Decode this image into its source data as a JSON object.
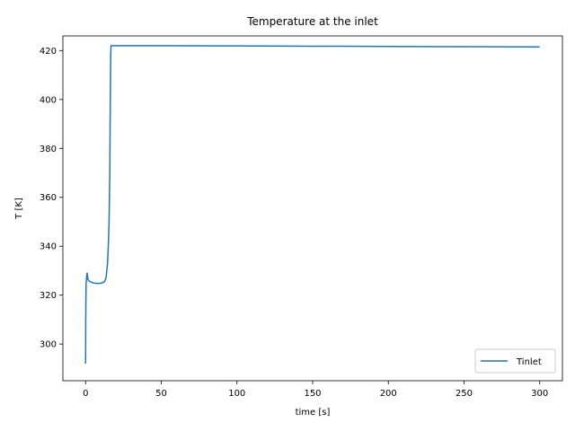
{
  "chart_data": {
    "type": "line",
    "title": "Temperature at the inlet",
    "xlabel": "time [s]",
    "ylabel": "T [K]",
    "xlim": [
      -15,
      315
    ],
    "ylim": [
      285,
      426
    ],
    "xticks": [
      0,
      50,
      100,
      150,
      200,
      250,
      300
    ],
    "yticks": [
      300,
      320,
      340,
      360,
      380,
      400,
      420
    ],
    "grid": false,
    "legend_position": "lower-right",
    "series": [
      {
        "name": "Tinlet",
        "color": "#1f77b4",
        "x": [
          0,
          0.1,
          0.3,
          0.6,
          1.0,
          1.5,
          2.0,
          3.0,
          5.0,
          7.0,
          9.0,
          11.0,
          12.5,
          13.5,
          14.5,
          15.0,
          15.5,
          16.0,
          16.2,
          16.4,
          16.6,
          16.8,
          17.0,
          20,
          50,
          100,
          150,
          200,
          250,
          300
        ],
        "y": [
          292,
          310,
          324,
          327,
          329,
          326.5,
          326,
          325.5,
          325,
          324.8,
          324.8,
          325,
          325.5,
          327,
          333,
          340,
          350,
          370,
          390,
          405,
          418,
          422,
          422,
          422,
          422,
          421.9,
          421.8,
          421.7,
          421.6,
          421.5
        ]
      }
    ]
  }
}
